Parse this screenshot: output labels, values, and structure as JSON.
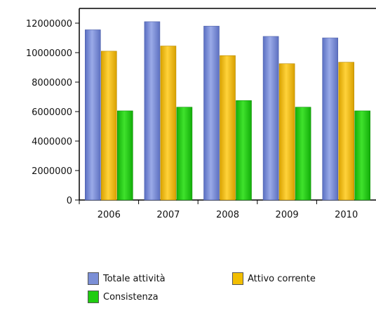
{
  "chart_data": {
    "type": "bar",
    "title": "",
    "xlabel": "",
    "ylabel": "",
    "categories": [
      "2006",
      "2007",
      "2008",
      "2009",
      "2010"
    ],
    "series": [
      {
        "name": "Totale attività",
        "color": "#7b8fd6",
        "values": [
          11550000,
          12100000,
          11800000,
          11100000,
          11000000
        ]
      },
      {
        "name": "Attivo corrente",
        "color": "#f2be00",
        "values": [
          10100000,
          10450000,
          9800000,
          9250000,
          9350000
        ]
      },
      {
        "name": "Consistenza",
        "color": "#1fcc10",
        "values": [
          6050000,
          6300000,
          6750000,
          6300000,
          6050000
        ]
      }
    ],
    "ylim": [
      0,
      13000000
    ],
    "yticks": [
      0,
      2000000,
      4000000,
      6000000,
      8000000,
      10000000,
      12000000
    ],
    "ytick_labels": [
      "0",
      "2000000",
      "4000000",
      "6000000",
      "8000000",
      "10000000",
      "12000000"
    ],
    "grid": false,
    "legend_position": "bottom"
  }
}
